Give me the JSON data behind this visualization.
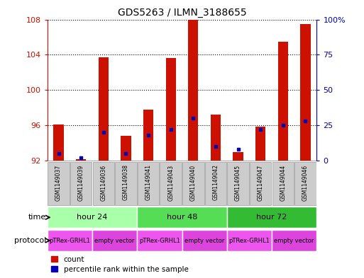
{
  "title": "GDS5263 / ILMN_3188655",
  "samples": [
    "GSM1149037",
    "GSM1149039",
    "GSM1149036",
    "GSM1149038",
    "GSM1149041",
    "GSM1149043",
    "GSM1149040",
    "GSM1149042",
    "GSM1149045",
    "GSM1149047",
    "GSM1149044",
    "GSM1149046"
  ],
  "count_values": [
    96.1,
    92.2,
    103.7,
    94.8,
    97.8,
    103.6,
    108.0,
    97.2,
    93.0,
    95.9,
    105.5,
    107.5
  ],
  "percentile_values": [
    5,
    2,
    20,
    5,
    18,
    22,
    30,
    10,
    8,
    22,
    25,
    28
  ],
  "y_min": 92,
  "y_max": 108,
  "y_ticks": [
    92,
    96,
    100,
    104,
    108
  ],
  "y2_ticks": [
    0,
    25,
    50,
    75,
    100
  ],
  "y2_labels": [
    "0",
    "25",
    "50",
    "75",
    "100%"
  ],
  "time_groups": [
    {
      "label": "hour 24",
      "start": 0,
      "end": 4,
      "color": "#AAFFAA"
    },
    {
      "label": "hour 48",
      "start": 4,
      "end": 8,
      "color": "#55DD55"
    },
    {
      "label": "hour 72",
      "start": 8,
      "end": 12,
      "color": "#33BB33"
    }
  ],
  "protocol_groups": [
    {
      "label": "pTRex-GRHL1",
      "start": 0,
      "end": 2,
      "color": "#EE55EE"
    },
    {
      "label": "empty vector",
      "start": 2,
      "end": 4,
      "color": "#DD44DD"
    },
    {
      "label": "pTRex-GRHL1",
      "start": 4,
      "end": 6,
      "color": "#EE55EE"
    },
    {
      "label": "empty vector",
      "start": 6,
      "end": 8,
      "color": "#DD44DD"
    },
    {
      "label": "pTRex-GRHL1",
      "start": 8,
      "end": 10,
      "color": "#EE55EE"
    },
    {
      "label": "empty vector",
      "start": 10,
      "end": 12,
      "color": "#DD44DD"
    }
  ],
  "bar_color": "#CC1100",
  "blue_color": "#0000BB",
  "bar_width": 0.45,
  "left_axis_color": "#CC1100",
  "right_axis_color": "#0000BB",
  "sample_box_color": "#CCCCCC",
  "sample_box_edge": "#999999"
}
